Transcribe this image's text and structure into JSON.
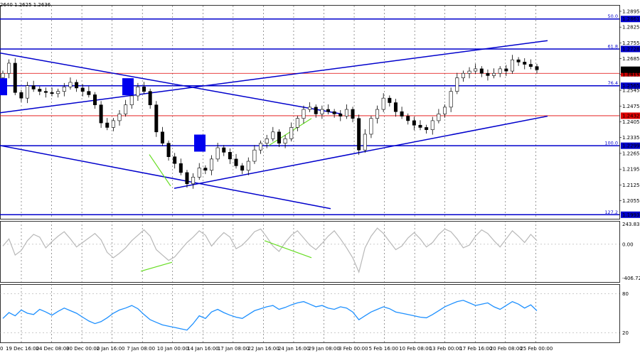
{
  "header": {
    "ohlc": "2640 1.2625 1.2636"
  },
  "colors": {
    "channel": "#0000cc",
    "level": "#0000cc",
    "red_level": "#e00000",
    "divergence": "#66dd22",
    "cci": "#b8b8b8",
    "rsi": "#1e90ff",
    "marker": "#0000ee",
    "grid": "#555555"
  },
  "chart_data": [
    {
      "type": "candlestick",
      "price_axis": [
        "1.2895",
        "1.2825",
        "1.2755",
        "1.2685",
        "1.2615",
        "1.2545",
        "1.2475",
        "1.2405",
        "1.2335",
        "1.2265",
        "1.2195",
        "1.2125",
        "1.2055"
      ],
      "levels": [
        {
          "label": "50.0",
          "value": "1.2861"
        },
        {
          "label": "61.8",
          "value": "1.2728"
        },
        {
          "label": "",
          "value": "1.2620",
          "style": "red"
        },
        {
          "label": "76.4",
          "value": "1.2565"
        },
        {
          "label": "",
          "value": "1.2432",
          "style": "red"
        },
        {
          "label": "100.0",
          "value": "1.2299"
        },
        {
          "label": "127.2",
          "value": "1.1993"
        }
      ],
      "current_price": "1.2636",
      "x_labels": [
        "19 Dec 16:00",
        "24 Dec 08:00",
        "30 Dec 00:00",
        "2 Jan 16:00",
        "7 Jan 08:00",
        "10 Jan 00:00",
        "14 Jan 16:00",
        "17 Jan 08:00",
        "22 Jan 16:00",
        "24 Jan 16:00",
        "29 Jan 08:00",
        "3 Feb 00:00",
        "5 Feb 16:00",
        "10 Feb 08:00",
        "13 Feb 00:00",
        "17 Feb 16:00",
        "20 Feb 08:00",
        "25 Feb 00:00"
      ],
      "first_x_label": "0",
      "close": [
        1.262,
        1.2665,
        1.2535,
        1.251,
        1.2565,
        1.255,
        1.254,
        1.2535,
        1.253,
        1.254,
        1.256,
        1.258,
        1.2555,
        1.254,
        1.2525,
        1.248,
        1.24,
        1.238,
        1.241,
        1.244,
        1.248,
        1.252,
        1.256,
        1.254,
        1.248,
        1.236,
        1.231,
        1.225,
        1.222,
        1.218,
        1.213,
        1.216,
        1.22,
        1.219,
        1.224,
        1.229,
        1.227,
        1.224,
        1.221,
        1.219,
        1.223,
        1.228,
        1.231,
        1.233,
        1.236,
        1.231,
        1.233,
        1.238,
        1.242,
        1.246,
        1.247,
        1.244,
        1.246,
        1.245,
        1.244,
        1.243,
        1.246,
        1.242,
        1.228,
        1.235,
        1.242,
        1.246,
        1.251,
        1.249,
        1.245,
        1.243,
        1.241,
        1.239,
        1.238,
        1.237,
        1.241,
        1.244,
        1.247,
        1.254,
        1.26,
        1.262,
        1.263,
        1.264,
        1.262,
        1.261,
        1.262,
        1.264,
        1.263,
        1.268,
        1.267,
        1.266,
        1.265,
        1.2636
      ],
      "channels": [
        {
          "name": "upper-rising",
          "points": [
            [
              1.2445,
              0
            ],
            [
              1.2765,
              770
            ]
          ]
        },
        {
          "name": "lower-rising",
          "points": [
            [
              1.211,
              245
            ],
            [
              1.243,
              770
            ]
          ]
        },
        {
          "name": "upper-falling",
          "points": [
            [
              1.271,
              0
            ],
            [
              1.244,
              480
            ]
          ]
        },
        {
          "name": "lower-falling",
          "points": [
            [
              1.23,
              0
            ],
            [
              1.202,
              465
            ]
          ]
        }
      ],
      "divergences": [
        {
          "points": [
            [
              1.226,
              210
            ],
            [
              1.212,
              240
            ]
          ]
        },
        {
          "points": [
            [
              1.23,
              378
            ],
            [
              1.242,
              438
            ]
          ]
        }
      ]
    },
    {
      "type": "line",
      "name": "CCI",
      "y_labels": [
        "243.8374",
        "0.00",
        "-406.729"
      ],
      "values": [
        -20,
        60,
        -120,
        -70,
        40,
        110,
        80,
        -40,
        30,
        90,
        140,
        60,
        -30,
        20,
        70,
        120,
        50,
        -90,
        -150,
        -100,
        -40,
        40,
        100,
        160,
        90,
        -60,
        -120,
        -180,
        -140,
        -60,
        20,
        80,
        150,
        100,
        -20,
        60,
        130,
        80,
        -50,
        -10,
        60,
        140,
        170,
        80,
        -20,
        -80,
        20,
        100,
        150,
        70,
        -10,
        -60,
        10,
        90,
        150,
        60,
        -40,
        -150,
        -310,
        -40,
        90,
        180,
        120,
        30,
        -60,
        -20,
        70,
        130,
        60,
        -30,
        20,
        110,
        170,
        140,
        60,
        -40,
        -10,
        90,
        160,
        120,
        40,
        -30,
        60,
        150,
        90,
        20,
        110,
        40
      ]
    },
    {
      "type": "line",
      "name": "RSI",
      "y_labels": [
        "80",
        "20"
      ],
      "values": [
        42,
        51,
        46,
        55,
        50,
        48,
        56,
        52,
        47,
        53,
        58,
        54,
        50,
        44,
        38,
        34,
        37,
        43,
        50,
        55,
        58,
        62,
        57,
        48,
        40,
        36,
        32,
        30,
        28,
        26,
        24,
        34,
        46,
        42,
        52,
        56,
        51,
        47,
        44,
        42,
        48,
        54,
        57,
        60,
        62,
        56,
        59,
        63,
        66,
        68,
        64,
        60,
        62,
        58,
        56,
        60,
        58,
        52,
        40,
        46,
        52,
        56,
        60,
        57,
        52,
        50,
        48,
        46,
        44,
        43,
        48,
        54,
        60,
        64,
        68,
        70,
        66,
        62,
        64,
        66,
        60,
        56,
        62,
        68,
        64,
        58,
        63,
        54
      ]
    }
  ]
}
